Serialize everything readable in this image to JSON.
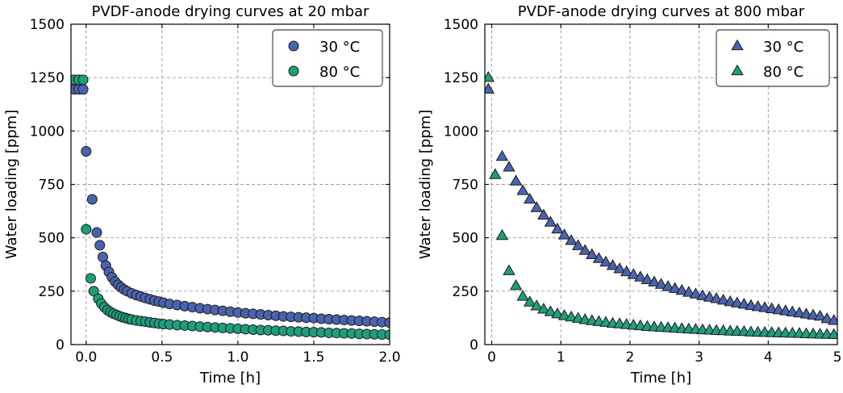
{
  "chart_data": [
    {
      "type": "scatter",
      "title": "PVDF-anode drying curves at 20 mbar",
      "xlabel": "Time [h]",
      "ylabel": "Water loading [ppm]",
      "xlim": [
        -0.1,
        2.0
      ],
      "ylim": [
        0,
        1500
      ],
      "xticks": [
        "0.0",
        "0.5",
        "1.0",
        "1.5",
        "2.0"
      ],
      "yticks": [
        "0",
        "250",
        "500",
        "750",
        "1000",
        "1250",
        "1500"
      ],
      "grid": true,
      "legend_position": "top-right",
      "marker": "circle",
      "series": [
        {
          "name": "30 °C",
          "color": "#4a63ad",
          "x": [
            -0.08,
            -0.05,
            -0.02,
            0.0,
            0.04,
            0.07,
            0.09,
            0.11,
            0.13,
            0.15,
            0.17,
            0.19,
            0.21,
            0.23,
            0.25,
            0.27,
            0.3,
            0.33,
            0.36,
            0.39,
            0.42,
            0.45,
            0.48,
            0.51,
            0.55,
            0.6,
            0.65,
            0.7,
            0.75,
            0.8,
            0.85,
            0.9,
            0.95,
            1.0,
            1.05,
            1.1,
            1.15,
            1.2,
            1.25,
            1.3,
            1.35,
            1.4,
            1.45,
            1.5,
            1.55,
            1.6,
            1.65,
            1.7,
            1.75,
            1.8,
            1.85,
            1.9,
            1.95,
            2.0
          ],
          "y": [
            1195,
            1195,
            1195,
            905,
            680,
            525,
            465,
            410,
            370,
            340,
            315,
            295,
            280,
            268,
            258,
            250,
            240,
            232,
            225,
            218,
            212,
            206,
            201,
            196,
            190,
            185,
            180,
            175,
            170,
            166,
            162,
            158,
            154,
            150,
            147,
            144,
            141,
            138,
            135,
            132,
            130,
            128,
            126,
            124,
            121,
            119,
            117,
            115,
            113,
            111,
            109,
            107,
            105,
            103
          ]
        },
        {
          "name": "80 °C",
          "color": "#1f9e7c",
          "x": [
            -0.08,
            -0.05,
            -0.02,
            0.0,
            0.03,
            0.05,
            0.08,
            0.1,
            0.12,
            0.14,
            0.16,
            0.18,
            0.2,
            0.22,
            0.24,
            0.26,
            0.28,
            0.3,
            0.33,
            0.36,
            0.39,
            0.42,
            0.45,
            0.48,
            0.51,
            0.55,
            0.6,
            0.65,
            0.7,
            0.75,
            0.8,
            0.85,
            0.9,
            0.95,
            1.0,
            1.05,
            1.1,
            1.15,
            1.2,
            1.25,
            1.3,
            1.35,
            1.4,
            1.45,
            1.5,
            1.55,
            1.6,
            1.65,
            1.7,
            1.75,
            1.8,
            1.85,
            1.9,
            1.95,
            2.0
          ],
          "y": [
            1240,
            1240,
            1240,
            540,
            310,
            250,
            215,
            192,
            175,
            162,
            152,
            145,
            139,
            133,
            128,
            124,
            120,
            117,
            113,
            110,
            107,
            104,
            101,
            98,
            96,
            94,
            91,
            89,
            87,
            84,
            82,
            80,
            78,
            76,
            74,
            72,
            70,
            68,
            67,
            65,
            64,
            62,
            61,
            59,
            58,
            57,
            55,
            54,
            53,
            52,
            50,
            49,
            48,
            47,
            46
          ]
        }
      ]
    },
    {
      "type": "scatter",
      "title": "PVDF-anode drying curves at 800 mbar",
      "xlabel": "Time [h]",
      "ylabel": "Water loading [ppm]",
      "xlim": [
        -0.1,
        5.0
      ],
      "ylim": [
        0,
        1500
      ],
      "xticks": [
        "0",
        "1",
        "2",
        "3",
        "4",
        "5"
      ],
      "yticks": [
        "0",
        "250",
        "500",
        "750",
        "1000",
        "1250",
        "1500"
      ],
      "grid": true,
      "legend_position": "top-right",
      "marker": "triangle",
      "series": [
        {
          "name": "30 °C",
          "color": "#4a63ad",
          "x": [
            -0.05,
            0.15,
            0.25,
            0.35,
            0.45,
            0.55,
            0.65,
            0.75,
            0.85,
            0.95,
            1.05,
            1.15,
            1.25,
            1.35,
            1.45,
            1.55,
            1.65,
            1.75,
            1.85,
            1.95,
            2.05,
            2.15,
            2.25,
            2.35,
            2.45,
            2.55,
            2.65,
            2.75,
            2.85,
            2.95,
            3.05,
            3.15,
            3.25,
            3.35,
            3.45,
            3.55,
            3.65,
            3.75,
            3.85,
            3.95,
            4.05,
            4.15,
            4.25,
            4.35,
            4.45,
            4.55,
            4.65,
            4.75,
            4.85,
            4.95
          ],
          "y": [
            1195,
            880,
            830,
            765,
            720,
            680,
            640,
            605,
            572,
            540,
            512,
            486,
            462,
            440,
            420,
            402,
            385,
            369,
            354,
            340,
            327,
            315,
            303,
            292,
            281,
            271,
            262,
            253,
            244,
            236,
            228,
            221,
            214,
            207,
            200,
            194,
            188,
            182,
            177,
            172,
            167,
            162,
            157,
            152,
            147,
            142,
            137,
            132,
            120,
            112
          ]
        },
        {
          "name": "80 °C",
          "color": "#1f9e7c",
          "x": [
            -0.05,
            0.05,
            0.15,
            0.25,
            0.35,
            0.45,
            0.55,
            0.65,
            0.75,
            0.85,
            0.95,
            1.05,
            1.15,
            1.25,
            1.35,
            1.45,
            1.55,
            1.65,
            1.75,
            1.85,
            1.95,
            2.05,
            2.15,
            2.25,
            2.35,
            2.45,
            2.55,
            2.65,
            2.75,
            2.85,
            2.95,
            3.05,
            3.15,
            3.25,
            3.35,
            3.45,
            3.55,
            3.65,
            3.75,
            3.85,
            3.95,
            4.05,
            4.15,
            4.25,
            4.35,
            4.45,
            4.55,
            4.65,
            4.75,
            4.85,
            4.95
          ],
          "y": [
            1250,
            795,
            510,
            345,
            275,
            225,
            198,
            180,
            165,
            153,
            143,
            135,
            128,
            122,
            116,
            111,
            107,
            103,
            99,
            96,
            93,
            90,
            87,
            84,
            82,
            80,
            78,
            76,
            74,
            72,
            70,
            68,
            67,
            65,
            64,
            62,
            61,
            60,
            58,
            57,
            56,
            55,
            54,
            53,
            52,
            51,
            50,
            49,
            48,
            47,
            46
          ]
        }
      ]
    }
  ]
}
